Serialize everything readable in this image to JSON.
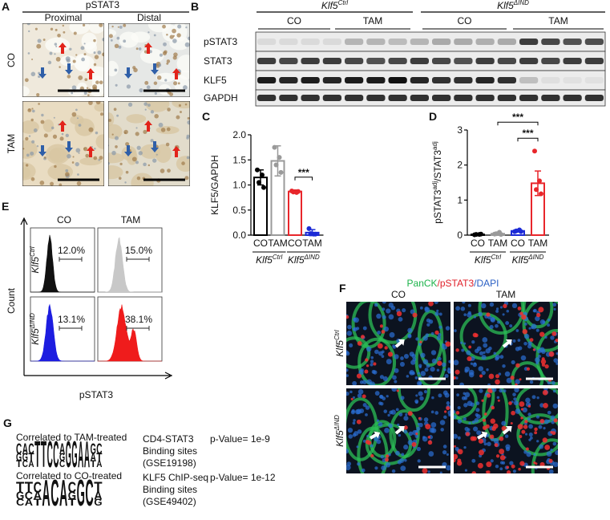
{
  "panel_a": {
    "letter": "A",
    "stain": "pSTAT3",
    "columns": [
      "Proximal",
      "Distal"
    ],
    "rows": [
      "CO",
      "TAM"
    ]
  },
  "panel_b": {
    "letter": "B",
    "groups": [
      {
        "name": "Klf5",
        "sup": "Ctrl"
      },
      {
        "name": "Klf5",
        "sup": "ΔIND"
      }
    ],
    "treatments": [
      "CO",
      "TAM",
      "CO",
      "TAM"
    ],
    "rows": [
      "pSTAT3",
      "STAT3",
      "KLF5",
      "GAPDH"
    ]
  },
  "chart_data": [
    {
      "type": "bar",
      "panel": "C",
      "y_label": [
        "KLF5/GAPDH"
      ],
      "categories": [
        "CO",
        "TAM",
        "CO",
        "TAM"
      ],
      "groups": [
        {
          "name": "Klf5",
          "sup": "Ctrl"
        },
        {
          "name": "Klf5",
          "sup": "ΔIND"
        }
      ],
      "values": [
        1.15,
        1.48,
        0.87,
        0.05
      ],
      "errors": [
        0.15,
        0.3,
        0.03,
        0.06
      ],
      "points": [
        [
          1.3,
          1.2,
          1.05,
          0.95
        ],
        [
          1.75,
          1.55,
          1.4,
          1.25
        ],
        [
          0.88,
          0.85,
          0.86,
          0.87
        ],
        [
          0.13,
          0.02,
          0.03,
          0.02
        ]
      ],
      "colors": [
        "#000000",
        "#9a9a9a",
        "#e8262b",
        "#1c2bd6"
      ],
      "ylim": [
        0,
        2
      ],
      "yticks": [
        {
          "value": 0,
          "label": "0.0"
        },
        {
          "value": 0.5,
          "label": "0.5"
        },
        {
          "value": 1,
          "label": "1.0"
        },
        {
          "value": 1.5,
          "label": "1.5"
        },
        {
          "value": 2,
          "label": "2.0"
        }
      ],
      "significance": [
        {
          "label": "***",
          "from": 2,
          "to": 3
        }
      ]
    },
    {
      "type": "bar",
      "panel": "D",
      "y_label": [
        "pSTAT3",
        "adj",
        "/STAT3",
        "adj"
      ],
      "categories": [
        "CO",
        "TAM",
        "CO",
        "TAM"
      ],
      "groups": [
        {
          "name": "Klf5",
          "sup": "Ctrl"
        },
        {
          "name": "Klf5",
          "sup": "ΔIND"
        }
      ],
      "values": [
        0.02,
        0.04,
        0.12,
        1.48
      ],
      "errors": [
        0.01,
        0.02,
        0.03,
        0.35
      ],
      "points": [
        [
          0.01,
          0.02,
          0.02,
          0.03
        ],
        [
          0.03,
          0.08,
          0.04,
          0.02
        ],
        [
          0.1,
          0.15,
          0.12,
          0.1
        ],
        [
          2.4,
          1.55,
          1.3,
          1.18
        ]
      ],
      "colors": [
        "#000000",
        "#9a9a9a",
        "#1c2bd6",
        "#e8262b"
      ],
      "ylim": [
        0,
        3
      ],
      "yticks": [
        0,
        1,
        2,
        3
      ],
      "significance": [
        {
          "label": "***",
          "from": 1,
          "to": 3
        },
        {
          "label": "***",
          "from": 2,
          "to": 3
        }
      ]
    }
  ],
  "panel_e": {
    "letter": "E",
    "columns": [
      "CO",
      "TAM"
    ],
    "rows": [
      {
        "name": "Klf5",
        "sup": "Ctrl"
      },
      {
        "name": "Klf5",
        "sup": "ΔIND"
      }
    ],
    "percentages": [
      [
        "12.0%",
        "15.0%"
      ],
      [
        "13.1%",
        "38.1%"
      ]
    ],
    "y_label": "Count",
    "x_label": "pSTAT3"
  },
  "panel_f": {
    "letter": "F",
    "stain": [
      "PanCK",
      "/pSTAT3",
      "/DAPI"
    ],
    "columns": [
      "CO",
      "TAM"
    ],
    "rows": [
      {
        "name": "Klf5",
        "sup": "Ctrl"
      },
      {
        "name": "Klf5",
        "sup": "ΔIND"
      }
    ]
  },
  "panel_g": {
    "letter": "G",
    "motifs": [
      {
        "caption": "Correlated to TAM-treated",
        "logo": [
          "CGT",
          "AGC",
          "CTA",
          "T",
          "T",
          "C",
          "C",
          "AGC",
          "G",
          "G",
          "A",
          "A",
          "GAT",
          "CTA"
        ],
        "description": [
          "CD4-STAT3",
          "Binding sites",
          "(GSE19198)"
        ],
        "p_value": "p-Value= 1e-9"
      },
      {
        "caption": "Correlated to CO-treated",
        "logo": [
          "TGC",
          "TCA",
          "CAT",
          "A",
          "C",
          "A",
          "CGT",
          "G",
          "C",
          "TAG"
        ],
        "description": [
          "KLF5 ChIP-seq",
          "Binding sites",
          "(GSE49402)"
        ],
        "p_value": "p-Value= 1e-12"
      }
    ]
  }
}
